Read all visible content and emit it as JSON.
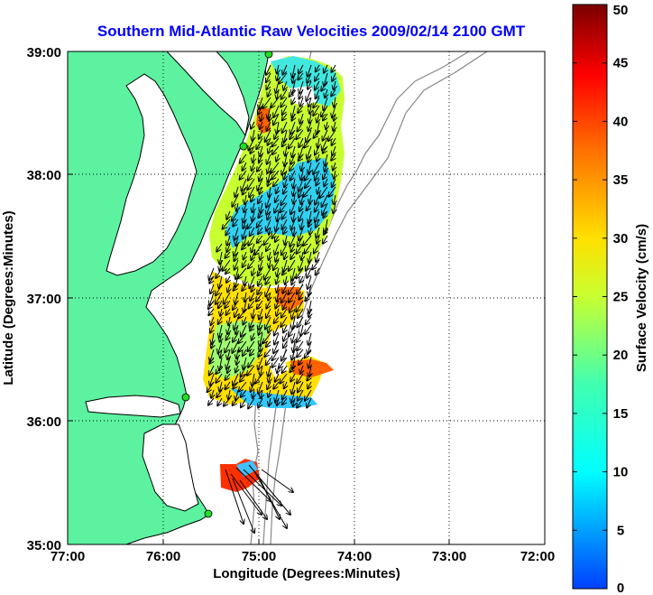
{
  "title": "Southern Mid-Atlantic Raw Velocities 2009/02/14 2100 GMT",
  "x_axis": {
    "label": "Longitude (Degrees:Minutes)",
    "ticks": [
      "77:00",
      "76:00",
      "75:00",
      "74:00",
      "73:00",
      "72:00"
    ],
    "range": [
      -77,
      -72
    ]
  },
  "y_axis": {
    "label": "Latitude (Degrees:Minutes)",
    "ticks": [
      "39:00",
      "38:00",
      "37:00",
      "36:00",
      "35:00"
    ],
    "range": [
      35,
      39
    ]
  },
  "colorbar": {
    "label": "Surface Velocity (cm/s)",
    "ticks": [
      "50",
      "45",
      "40",
      "35",
      "30",
      "25",
      "20",
      "15",
      "10",
      "5",
      "0"
    ],
    "range": [
      0,
      50
    ]
  },
  "colors": {
    "land": "#5cf2a0",
    "title": "#0000ff",
    "station": "#22dd22"
  },
  "grid": true
}
